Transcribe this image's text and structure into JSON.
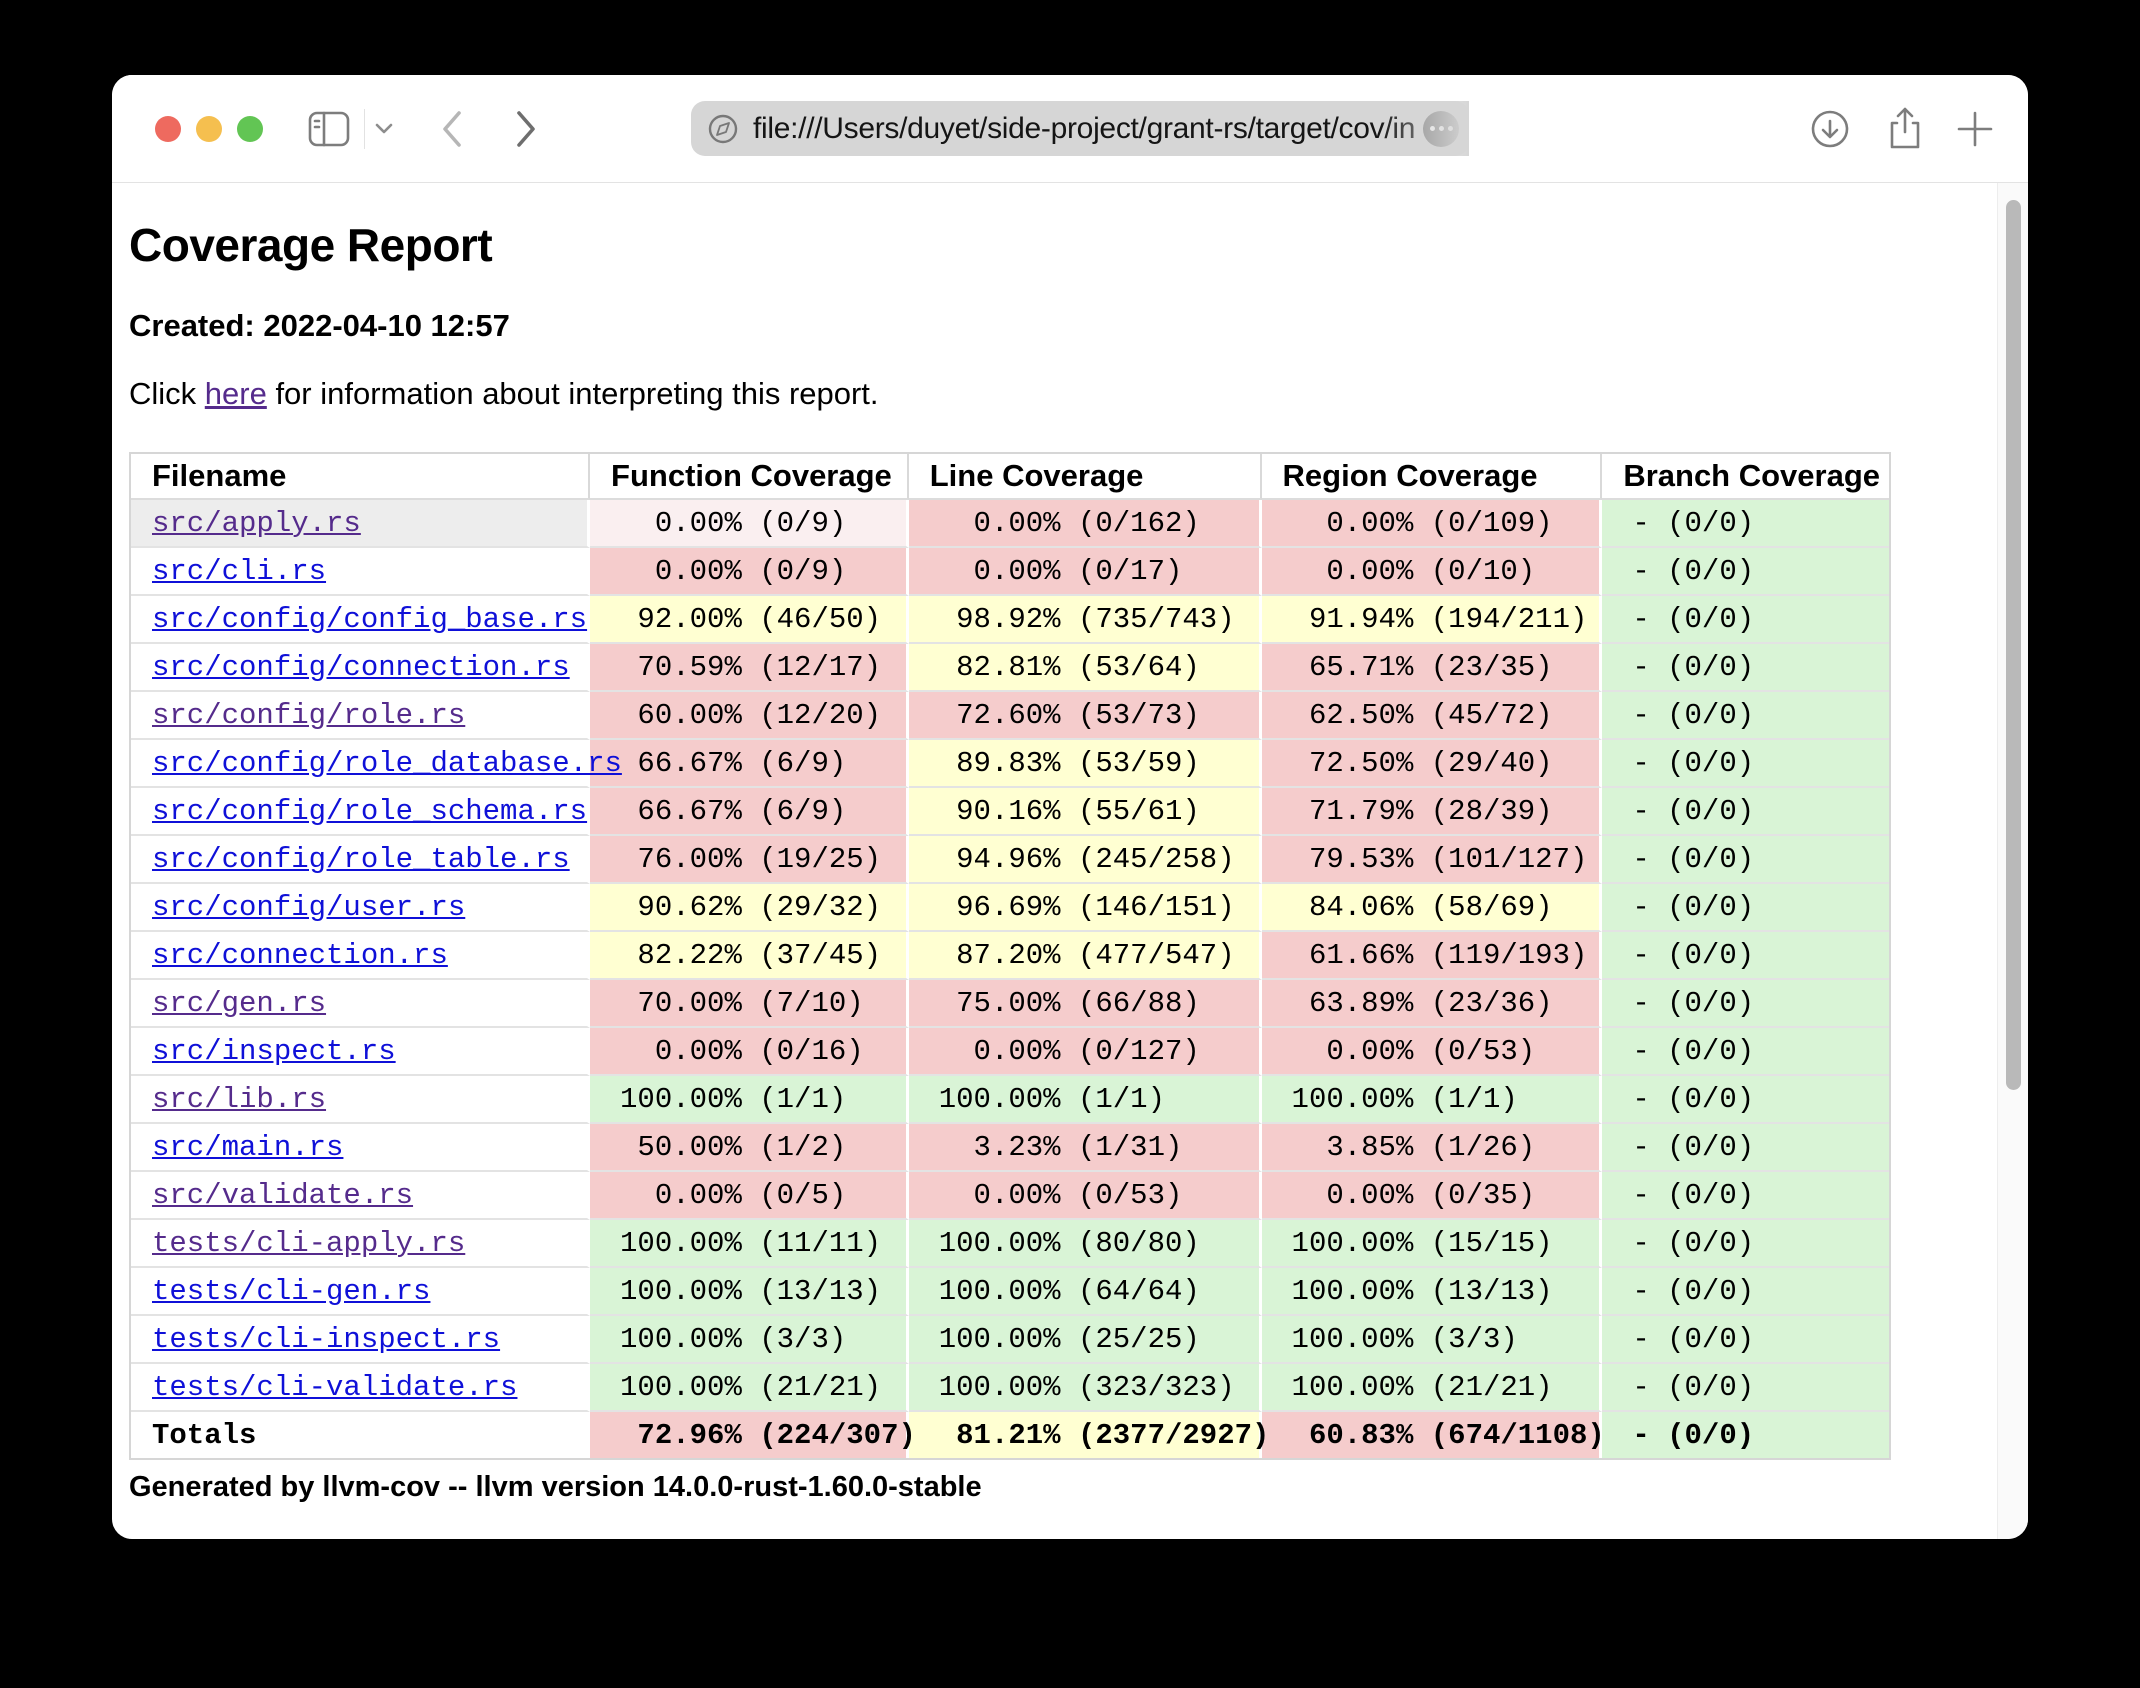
{
  "browser": {
    "url": "file:///Users/duyet/side-project/grant-rs/target/cov/in",
    "traffic_lights": [
      "close",
      "minimize",
      "zoom"
    ],
    "icons": {
      "sidebar": "sidebar-toggle-icon",
      "chevron_down": "chevron-down-icon",
      "back": "back-chevron-icon",
      "forward": "forward-chevron-icon",
      "compass": "compass-icon",
      "ellipsis": "more-options-icon",
      "download": "downloads-icon",
      "share": "share-icon",
      "plus": "new-tab-icon"
    }
  },
  "page": {
    "title": "Coverage Report",
    "created_line": "Created: 2022-04-10 12:57",
    "click_prefix": "Click ",
    "link_text": "here",
    "click_suffix": " for information about interpreting this report.",
    "footer": "Generated by llvm-cov -- llvm version 14.0.0-rust-1.60.0-stable"
  },
  "table": {
    "headers": [
      "Filename",
      "Function Coverage",
      "Line Coverage",
      "Region Coverage",
      "Branch Coverage"
    ],
    "rows": [
      {
        "file": "src/apply.rs",
        "visited": true,
        "hover": true,
        "function": {
          "pct": "0.00%",
          "frac": "(0/9)",
          "color": "red_light"
        },
        "line": {
          "pct": "0.00%",
          "frac": "(0/162)",
          "color": "red"
        },
        "region": {
          "pct": "0.00%",
          "frac": "(0/109)",
          "color": "red"
        },
        "branch": {
          "pct": "-",
          "frac": "(0/0)",
          "color": "green"
        }
      },
      {
        "file": "src/cli.rs",
        "visited": false,
        "function": {
          "pct": "0.00%",
          "frac": "(0/9)",
          "color": "red"
        },
        "line": {
          "pct": "0.00%",
          "frac": "(0/17)",
          "color": "red"
        },
        "region": {
          "pct": "0.00%",
          "frac": "(0/10)",
          "color": "red"
        },
        "branch": {
          "pct": "-",
          "frac": "(0/0)",
          "color": "green"
        }
      },
      {
        "file": "src/config/config_base.rs",
        "visited": false,
        "function": {
          "pct": "92.00%",
          "frac": "(46/50)",
          "color": "yellow"
        },
        "line": {
          "pct": "98.92%",
          "frac": "(735/743)",
          "color": "yellow"
        },
        "region": {
          "pct": "91.94%",
          "frac": "(194/211)",
          "color": "yellow"
        },
        "branch": {
          "pct": "-",
          "frac": "(0/0)",
          "color": "green"
        }
      },
      {
        "file": "src/config/connection.rs",
        "visited": false,
        "function": {
          "pct": "70.59%",
          "frac": "(12/17)",
          "color": "red"
        },
        "line": {
          "pct": "82.81%",
          "frac": "(53/64)",
          "color": "yellow"
        },
        "region": {
          "pct": "65.71%",
          "frac": "(23/35)",
          "color": "red"
        },
        "branch": {
          "pct": "-",
          "frac": "(0/0)",
          "color": "green"
        }
      },
      {
        "file": "src/config/role.rs",
        "visited": true,
        "function": {
          "pct": "60.00%",
          "frac": "(12/20)",
          "color": "red"
        },
        "line": {
          "pct": "72.60%",
          "frac": "(53/73)",
          "color": "red"
        },
        "region": {
          "pct": "62.50%",
          "frac": "(45/72)",
          "color": "red"
        },
        "branch": {
          "pct": "-",
          "frac": "(0/0)",
          "color": "green"
        }
      },
      {
        "file": "src/config/role_database.rs",
        "visited": false,
        "function": {
          "pct": "66.67%",
          "frac": "(6/9)",
          "color": "red"
        },
        "line": {
          "pct": "89.83%",
          "frac": "(53/59)",
          "color": "yellow"
        },
        "region": {
          "pct": "72.50%",
          "frac": "(29/40)",
          "color": "red"
        },
        "branch": {
          "pct": "-",
          "frac": "(0/0)",
          "color": "green"
        }
      },
      {
        "file": "src/config/role_schema.rs",
        "visited": false,
        "function": {
          "pct": "66.67%",
          "frac": "(6/9)",
          "color": "red"
        },
        "line": {
          "pct": "90.16%",
          "frac": "(55/61)",
          "color": "yellow"
        },
        "region": {
          "pct": "71.79%",
          "frac": "(28/39)",
          "color": "red"
        },
        "branch": {
          "pct": "-",
          "frac": "(0/0)",
          "color": "green"
        }
      },
      {
        "file": "src/config/role_table.rs",
        "visited": false,
        "function": {
          "pct": "76.00%",
          "frac": "(19/25)",
          "color": "red"
        },
        "line": {
          "pct": "94.96%",
          "frac": "(245/258)",
          "color": "yellow"
        },
        "region": {
          "pct": "79.53%",
          "frac": "(101/127)",
          "color": "red"
        },
        "branch": {
          "pct": "-",
          "frac": "(0/0)",
          "color": "green"
        }
      },
      {
        "file": "src/config/user.rs",
        "visited": false,
        "function": {
          "pct": "90.62%",
          "frac": "(29/32)",
          "color": "yellow"
        },
        "line": {
          "pct": "96.69%",
          "frac": "(146/151)",
          "color": "yellow"
        },
        "region": {
          "pct": "84.06%",
          "frac": "(58/69)",
          "color": "yellow"
        },
        "branch": {
          "pct": "-",
          "frac": "(0/0)",
          "color": "green"
        }
      },
      {
        "file": "src/connection.rs",
        "visited": false,
        "function": {
          "pct": "82.22%",
          "frac": "(37/45)",
          "color": "yellow"
        },
        "line": {
          "pct": "87.20%",
          "frac": "(477/547)",
          "color": "yellow"
        },
        "region": {
          "pct": "61.66%",
          "frac": "(119/193)",
          "color": "red"
        },
        "branch": {
          "pct": "-",
          "frac": "(0/0)",
          "color": "green"
        }
      },
      {
        "file": "src/gen.rs",
        "visited": true,
        "function": {
          "pct": "70.00%",
          "frac": "(7/10)",
          "color": "red"
        },
        "line": {
          "pct": "75.00%",
          "frac": "(66/88)",
          "color": "red"
        },
        "region": {
          "pct": "63.89%",
          "frac": "(23/36)",
          "color": "red"
        },
        "branch": {
          "pct": "-",
          "frac": "(0/0)",
          "color": "green"
        }
      },
      {
        "file": "src/inspect.rs",
        "visited": false,
        "function": {
          "pct": "0.00%",
          "frac": "(0/16)",
          "color": "red"
        },
        "line": {
          "pct": "0.00%",
          "frac": "(0/127)",
          "color": "red"
        },
        "region": {
          "pct": "0.00%",
          "frac": "(0/53)",
          "color": "red"
        },
        "branch": {
          "pct": "-",
          "frac": "(0/0)",
          "color": "green"
        }
      },
      {
        "file": "src/lib.rs",
        "visited": true,
        "function": {
          "pct": "100.00%",
          "frac": "(1/1)",
          "color": "green"
        },
        "line": {
          "pct": "100.00%",
          "frac": "(1/1)",
          "color": "green"
        },
        "region": {
          "pct": "100.00%",
          "frac": "(1/1)",
          "color": "green"
        },
        "branch": {
          "pct": "-",
          "frac": "(0/0)",
          "color": "green"
        }
      },
      {
        "file": "src/main.rs",
        "visited": false,
        "function": {
          "pct": "50.00%",
          "frac": "(1/2)",
          "color": "red"
        },
        "line": {
          "pct": "3.23%",
          "frac": "(1/31)",
          "color": "red"
        },
        "region": {
          "pct": "3.85%",
          "frac": "(1/26)",
          "color": "red"
        },
        "branch": {
          "pct": "-",
          "frac": "(0/0)",
          "color": "green"
        }
      },
      {
        "file": "src/validate.rs",
        "visited": true,
        "function": {
          "pct": "0.00%",
          "frac": "(0/5)",
          "color": "red"
        },
        "line": {
          "pct": "0.00%",
          "frac": "(0/53)",
          "color": "red"
        },
        "region": {
          "pct": "0.00%",
          "frac": "(0/35)",
          "color": "red"
        },
        "branch": {
          "pct": "-",
          "frac": "(0/0)",
          "color": "green"
        }
      },
      {
        "file": "tests/cli-apply.rs",
        "visited": true,
        "function": {
          "pct": "100.00%",
          "frac": "(11/11)",
          "color": "green"
        },
        "line": {
          "pct": "100.00%",
          "frac": "(80/80)",
          "color": "green"
        },
        "region": {
          "pct": "100.00%",
          "frac": "(15/15)",
          "color": "green"
        },
        "branch": {
          "pct": "-",
          "frac": "(0/0)",
          "color": "green"
        }
      },
      {
        "file": "tests/cli-gen.rs",
        "visited": false,
        "function": {
          "pct": "100.00%",
          "frac": "(13/13)",
          "color": "green"
        },
        "line": {
          "pct": "100.00%",
          "frac": "(64/64)",
          "color": "green"
        },
        "region": {
          "pct": "100.00%",
          "frac": "(13/13)",
          "color": "green"
        },
        "branch": {
          "pct": "-",
          "frac": "(0/0)",
          "color": "green"
        }
      },
      {
        "file": "tests/cli-inspect.rs",
        "visited": false,
        "function": {
          "pct": "100.00%",
          "frac": "(3/3)",
          "color": "green"
        },
        "line": {
          "pct": "100.00%",
          "frac": "(25/25)",
          "color": "green"
        },
        "region": {
          "pct": "100.00%",
          "frac": "(3/3)",
          "color": "green"
        },
        "branch": {
          "pct": "-",
          "frac": "(0/0)",
          "color": "green"
        }
      },
      {
        "file": "tests/cli-validate.rs",
        "visited": false,
        "function": {
          "pct": "100.00%",
          "frac": "(21/21)",
          "color": "green"
        },
        "line": {
          "pct": "100.00%",
          "frac": "(323/323)",
          "color": "green"
        },
        "region": {
          "pct": "100.00%",
          "frac": "(21/21)",
          "color": "green"
        },
        "branch": {
          "pct": "-",
          "frac": "(0/0)",
          "color": "green"
        }
      },
      {
        "file": "Totals",
        "totals": true,
        "function": {
          "pct": "72.96%",
          "frac": "(224/307)",
          "color": "red"
        },
        "line": {
          "pct": "81.21%",
          "frac": "(2377/2927)",
          "color": "yellow"
        },
        "region": {
          "pct": "60.83%",
          "frac": "(674/1108)",
          "color": "red"
        },
        "branch": {
          "pct": "-",
          "frac": "(0/0)",
          "color": "green"
        }
      }
    ]
  },
  "colors": {
    "tl_red": "#ee6a5f",
    "tl_yellow": "#f5bf4f",
    "tl_green": "#62c554",
    "cell_red": "#f5cccc",
    "cell_red_light": "#faeff0",
    "cell_yellow": "#ffffd2",
    "cell_green": "#d9f4d6",
    "hover_gray": "#ededed",
    "link_blue": "#0f10d8",
    "link_visited": "#552b8c"
  }
}
